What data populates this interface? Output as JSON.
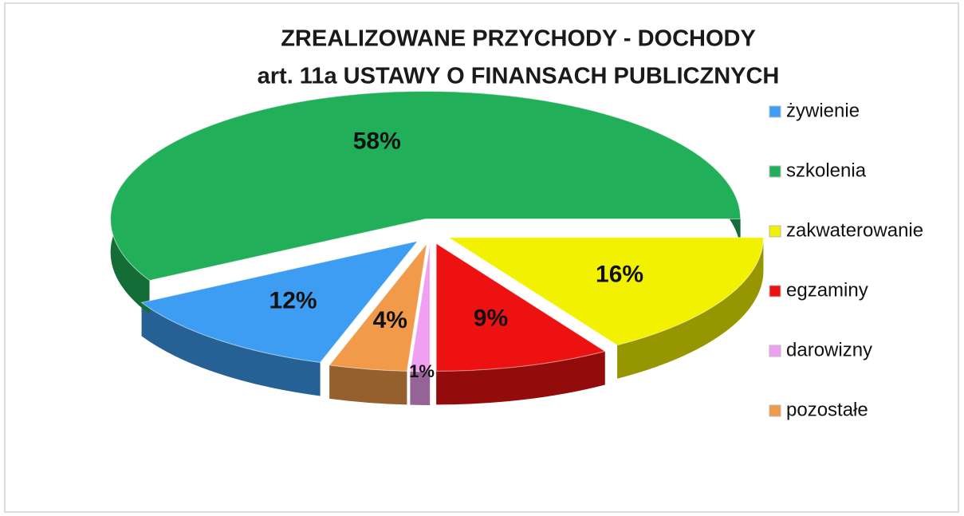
{
  "chart_data": {
    "type": "pie",
    "title": "ZREALIZOWANE PRZYCHODY - DOCHODY",
    "subtitle": "art. 11a USTAWY O FINANSACH PUBLICZNYCH",
    "categories": [
      "żywienie",
      "szkolenia",
      "zakwaterowanie",
      "egzaminy",
      "darowizny",
      "pozostałe"
    ],
    "values": [
      12,
      58,
      16,
      9,
      1,
      4
    ],
    "value_labels": [
      "12%",
      "58%",
      "16%",
      "9%",
      "1%",
      "4%"
    ],
    "colors": [
      "#3d9df2",
      "#21b059",
      "#f2f200",
      "#ee1111",
      "#f0a0f0",
      "#f09a4a"
    ],
    "legend": "right"
  }
}
